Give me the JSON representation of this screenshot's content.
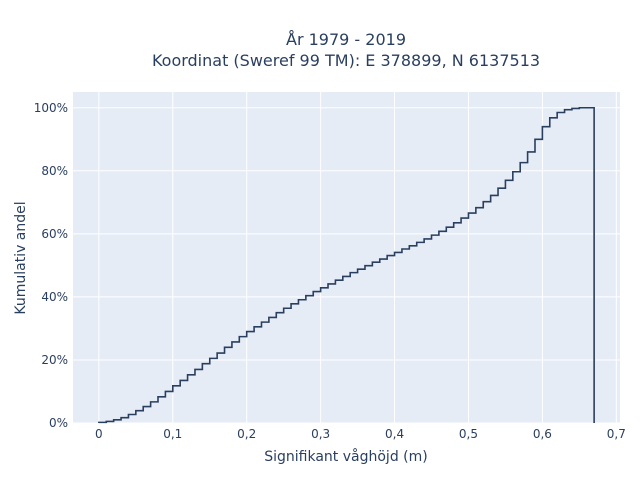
{
  "chart_data": {
    "type": "line",
    "subtype": "cumulative-step",
    "title_lines": [
      "År 1979 - 2019",
      "Koordinat (Sweref 99 TM): E 378899, N 6137513"
    ],
    "xlabel": "Signifikant våghöjd (m)",
    "ylabel": "Kumulativ andel",
    "xlim": [
      -0.035,
      0.705
    ],
    "ylim": [
      0,
      1.05
    ],
    "x_ticks": [
      0,
      0.1,
      0.2,
      0.3,
      0.4,
      0.5,
      0.6,
      0.7
    ],
    "x_tick_labels": [
      "0",
      "0,1",
      "0,2",
      "0,3",
      "0,4",
      "0,5",
      "0,6",
      "0,7"
    ],
    "y_ticks": [
      0,
      0.2,
      0.4,
      0.6,
      0.8,
      1.0
    ],
    "y_tick_labels": [
      "0%",
      "20%",
      "40%",
      "60%",
      "80%",
      "100%"
    ],
    "grid": true,
    "series": [
      {
        "color": "#2a3f5f",
        "bin_width": 0.01,
        "x": [
          0.0,
          0.01,
          0.02,
          0.03,
          0.04,
          0.05,
          0.06,
          0.07,
          0.08,
          0.09,
          0.1,
          0.11,
          0.12,
          0.13,
          0.14,
          0.15,
          0.16,
          0.17,
          0.18,
          0.19,
          0.2,
          0.21,
          0.22,
          0.23,
          0.24,
          0.25,
          0.26,
          0.27,
          0.28,
          0.29,
          0.3,
          0.31,
          0.32,
          0.33,
          0.34,
          0.35,
          0.36,
          0.37,
          0.38,
          0.39,
          0.4,
          0.41,
          0.42,
          0.43,
          0.44,
          0.45,
          0.46,
          0.47,
          0.48,
          0.49,
          0.5,
          0.51,
          0.52,
          0.53,
          0.54,
          0.55,
          0.56,
          0.57,
          0.58,
          0.59,
          0.6,
          0.61,
          0.62,
          0.63,
          0.64,
          0.65,
          0.66
        ],
        "y": [
          0.002,
          0.005,
          0.01,
          0.017,
          0.027,
          0.039,
          0.052,
          0.067,
          0.083,
          0.1,
          0.118,
          0.135,
          0.153,
          0.17,
          0.188,
          0.205,
          0.222,
          0.24,
          0.257,
          0.274,
          0.29,
          0.305,
          0.32,
          0.335,
          0.35,
          0.364,
          0.378,
          0.391,
          0.404,
          0.417,
          0.429,
          0.441,
          0.453,
          0.465,
          0.477,
          0.488,
          0.499,
          0.51,
          0.52,
          0.531,
          0.541,
          0.552,
          0.562,
          0.573,
          0.584,
          0.596,
          0.608,
          0.621,
          0.635,
          0.65,
          0.666,
          0.683,
          0.702,
          0.722,
          0.745,
          0.77,
          0.797,
          0.826,
          0.86,
          0.9,
          0.94,
          0.968,
          0.985,
          0.994,
          0.998,
          1.0,
          1.0
        ]
      }
    ]
  }
}
